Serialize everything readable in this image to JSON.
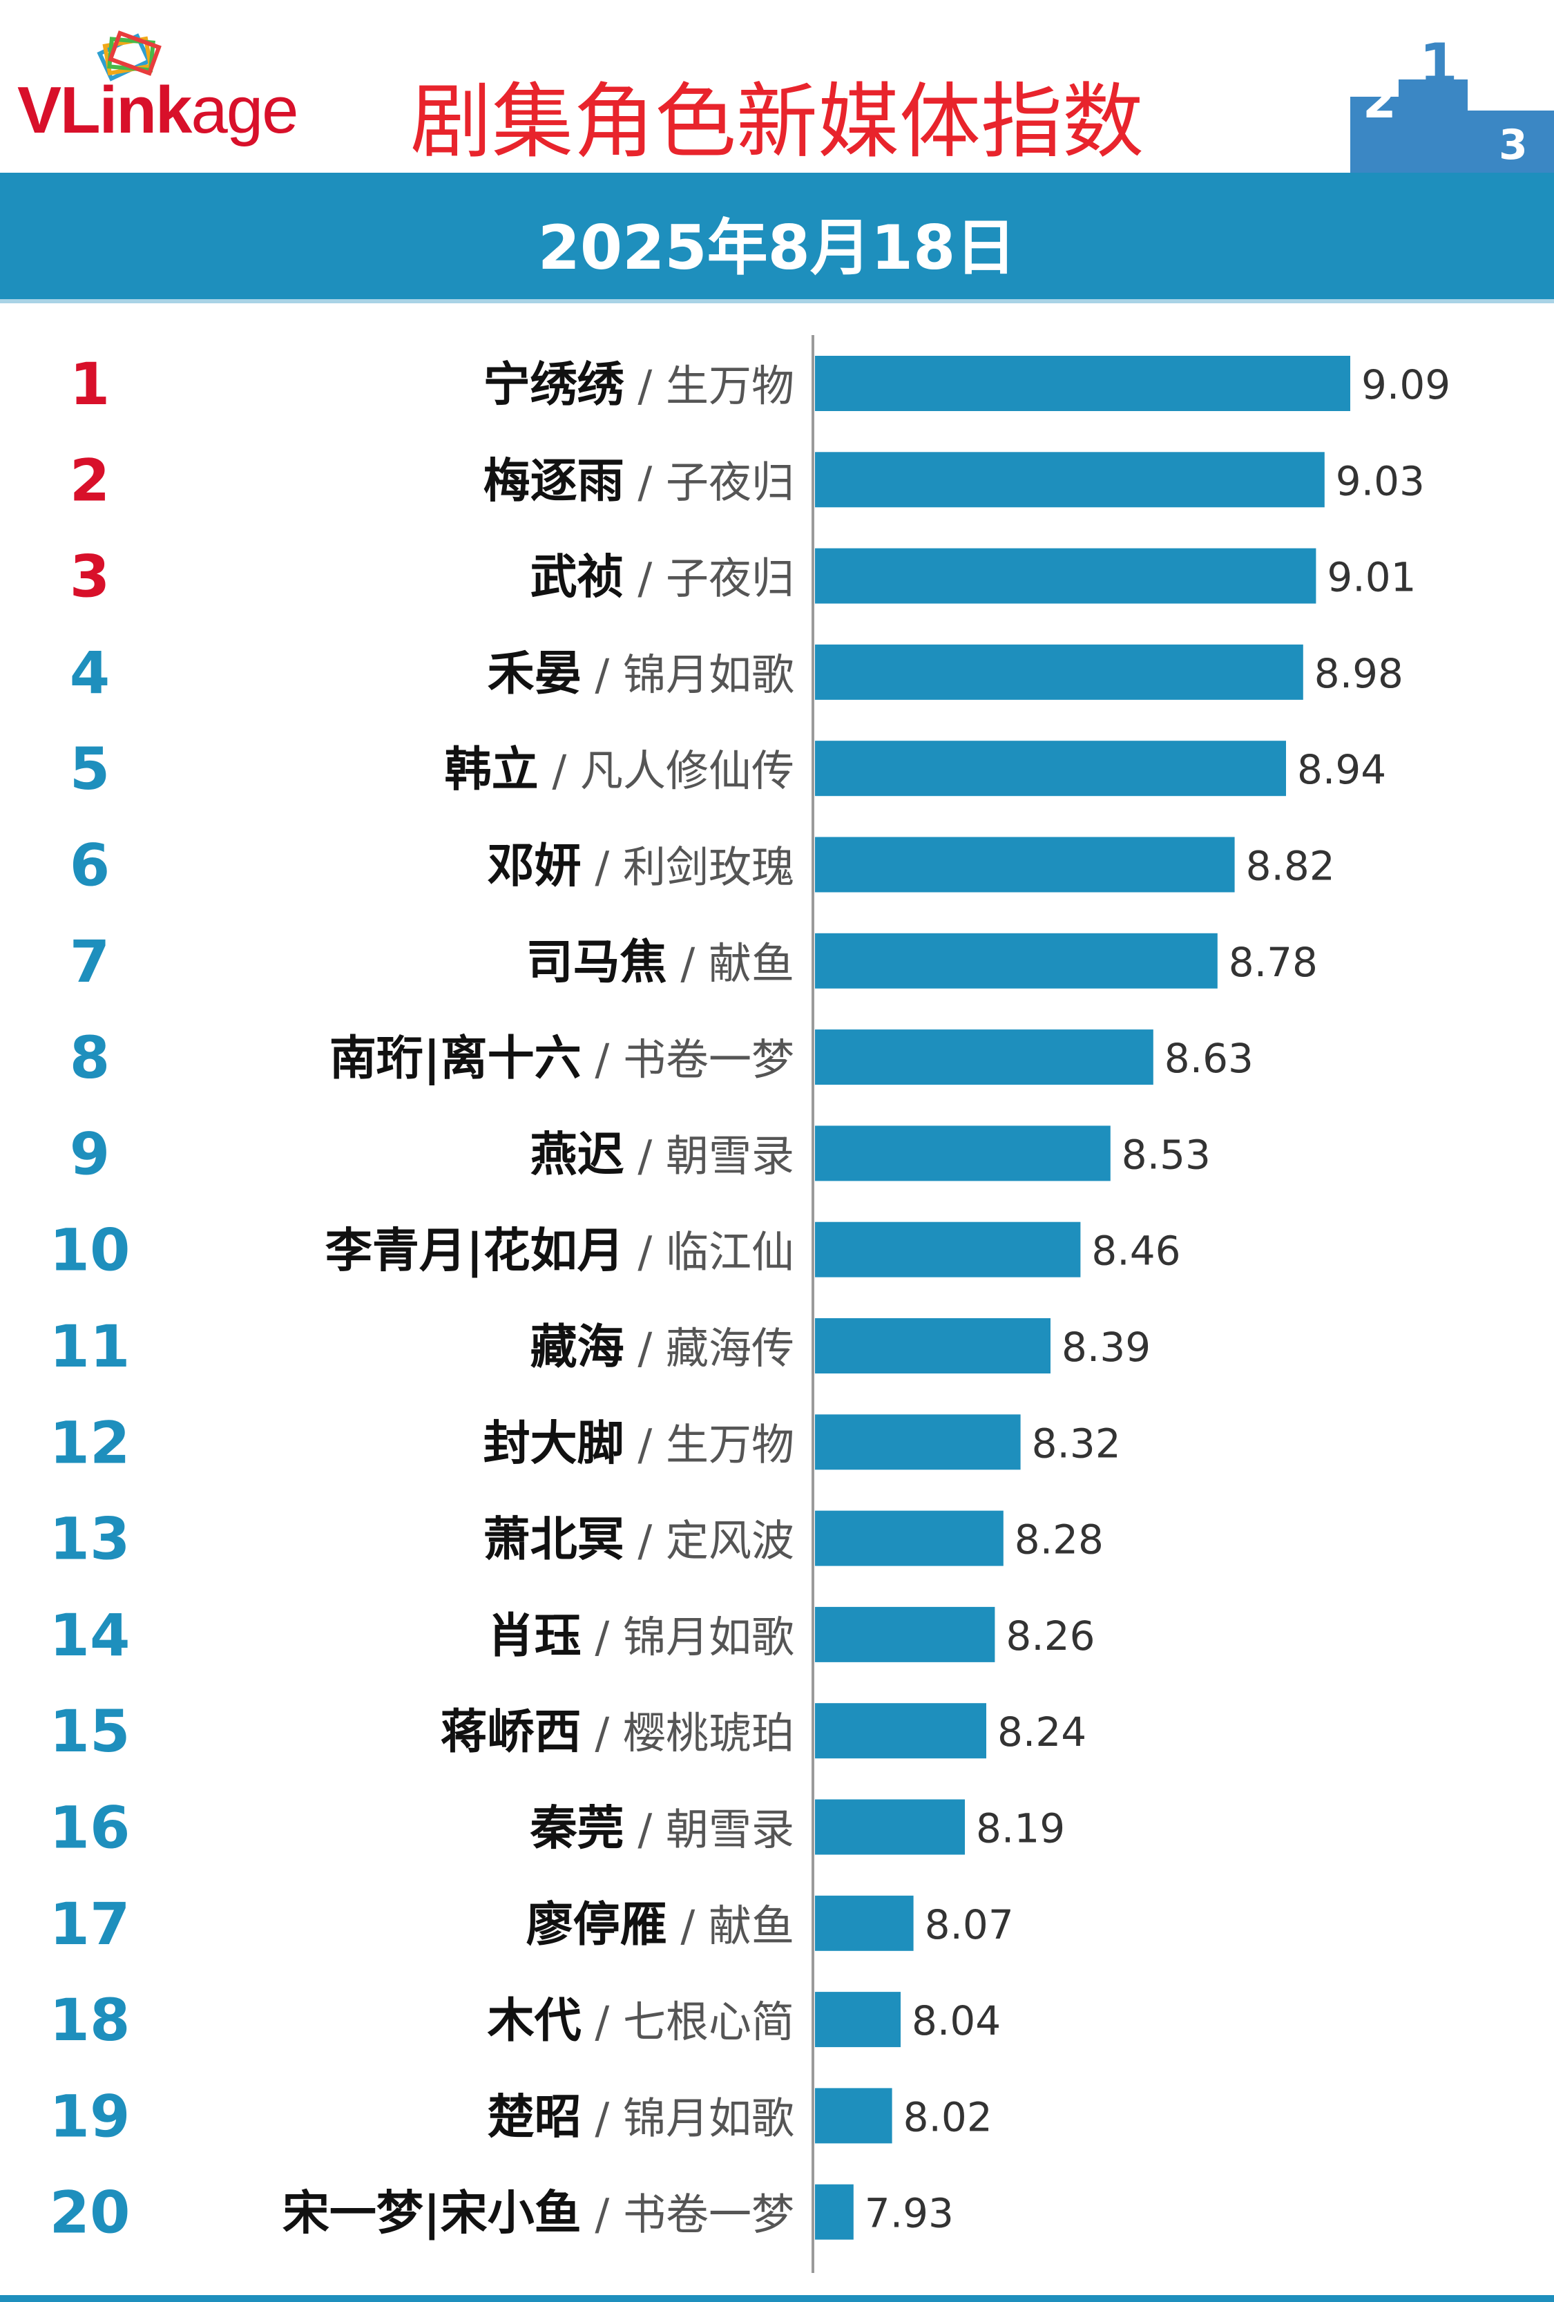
{
  "header": {
    "logo_text": "VLink",
    "logo_text_rest": "age",
    "title": "剧集角色新媒体指数",
    "date": "2025年8月18日"
  },
  "colors": {
    "bar": "#1e8fbd",
    "rank_top3": "#d8102a",
    "rank_other": "#1e8fbd",
    "title": "#e8242c"
  },
  "chart_data": {
    "type": "bar",
    "orientation": "horizontal",
    "grid": false,
    "legend": "none",
    "ranks": [
      "1",
      "2",
      "3",
      "4",
      "5",
      "6",
      "7",
      "8",
      "9",
      "10",
      "11",
      "12",
      "13",
      "14",
      "15",
      "16",
      "17",
      "18",
      "19",
      "20"
    ],
    "categories": [
      "宁绣绣",
      "梅逐雨",
      "武祯",
      "禾晏",
      "韩立",
      "邓妍",
      "司马焦",
      "南珩|离十六",
      "燕迟",
      "李青月|花如月",
      "藏海",
      "封大脚",
      "萧北冥",
      "肖珏",
      "蒋峤西",
      "秦莞",
      "廖停雁",
      "木代",
      "楚昭",
      "宋一梦|宋小鱼"
    ],
    "shows": [
      "生万物",
      "子夜归",
      "子夜归",
      "锦月如歌",
      "凡人修仙传",
      "利剑玫瑰",
      "献鱼",
      "书卷一梦",
      "朝雪录",
      "临江仙",
      "藏海传",
      "生万物",
      "定风波",
      "锦月如歌",
      "樱桃琥珀",
      "朝雪录",
      "献鱼",
      "七根心简",
      "锦月如歌",
      "书卷一梦"
    ],
    "values": [
      9.09,
      9.03,
      9.01,
      8.98,
      8.94,
      8.82,
      8.78,
      8.63,
      8.53,
      8.46,
      8.39,
      8.32,
      8.28,
      8.26,
      8.24,
      8.19,
      8.07,
      8.04,
      8.02,
      7.93
    ],
    "value_labels": [
      "9.09",
      "9.03",
      "9.01",
      "8.98",
      "8.94",
      "8.82",
      "8.78",
      "8.63",
      "8.53",
      "8.46",
      "8.39",
      "8.32",
      "8.28",
      "8.26",
      "8.24",
      "8.19",
      "8.07",
      "8.04",
      "8.02",
      "7.93"
    ],
    "xlim": [
      7.84,
      9.09
    ]
  }
}
